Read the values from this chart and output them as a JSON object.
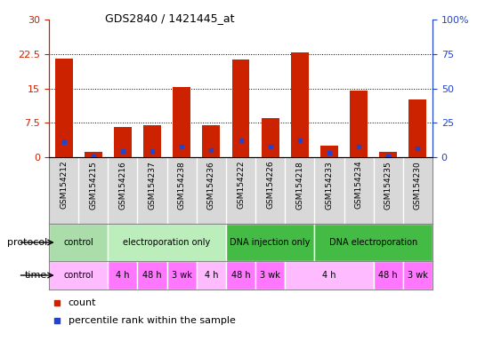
{
  "title": "GDS2840 / 1421445_at",
  "samples": [
    "GSM154212",
    "GSM154215",
    "GSM154216",
    "GSM154237",
    "GSM154238",
    "GSM154236",
    "GSM154222",
    "GSM154226",
    "GSM154218",
    "GSM154233",
    "GSM154234",
    "GSM154235",
    "GSM154230"
  ],
  "counts": [
    21.5,
    1.2,
    6.5,
    7.0,
    15.2,
    7.0,
    21.3,
    8.5,
    22.8,
    2.5,
    14.5,
    1.2,
    12.5
  ],
  "percentile_ranks": [
    11.0,
    0.5,
    4.5,
    4.5,
    7.5,
    5.0,
    12.5,
    8.0,
    12.5,
    3.5,
    7.5,
    0.5,
    6.5
  ],
  "ylim_left": [
    0,
    30
  ],
  "ylim_right": [
    0,
    100
  ],
  "yticks_left": [
    0,
    7.5,
    15,
    22.5,
    30
  ],
  "yticks_right": [
    0,
    25,
    50,
    75,
    100
  ],
  "bar_color": "#cc2200",
  "blue_color": "#2244cc",
  "grid_color": "#000000",
  "bg_color": "#ffffff",
  "bar_width": 0.6,
  "protocol_groups": [
    {
      "label": "control",
      "color": "#ccffcc",
      "start": 0,
      "end": 2
    },
    {
      "label": "electroporation only",
      "color": "#ccffcc",
      "start": 2,
      "end": 6,
      "lighter": true
    },
    {
      "label": "DNA injection only",
      "color": "#44cc44",
      "start": 6,
      "end": 9
    },
    {
      "label": "DNA electroporation",
      "color": "#44cc44",
      "start": 9,
      "end": 13
    }
  ],
  "time_groups": [
    {
      "label": "control",
      "color": "#ffaaff",
      "start": 0,
      "end": 2
    },
    {
      "label": "4 h",
      "color": "#ff55ff",
      "start": 2,
      "end": 3
    },
    {
      "label": "48 h",
      "color": "#ff55ff",
      "start": 3,
      "end": 4
    },
    {
      "label": "3 wk",
      "color": "#ff55ff",
      "start": 4,
      "end": 5
    },
    {
      "label": "4 h",
      "color": "#ffaaff",
      "start": 5,
      "end": 6
    },
    {
      "label": "48 h",
      "color": "#ff55ff",
      "start": 6,
      "end": 7
    },
    {
      "label": "3 wk",
      "color": "#ff55ff",
      "start": 7,
      "end": 8
    },
    {
      "label": "4 h",
      "color": "#ffaaff",
      "start": 8,
      "end": 11
    },
    {
      "label": "48 h",
      "color": "#ff55ff",
      "start": 11,
      "end": 12
    },
    {
      "label": "3 wk",
      "color": "#ff55ff",
      "start": 12,
      "end": 13
    }
  ],
  "legend_items": [
    {
      "label": "count",
      "color": "#cc2200"
    },
    {
      "label": "percentile rank within the sample",
      "color": "#2244cc"
    }
  ]
}
